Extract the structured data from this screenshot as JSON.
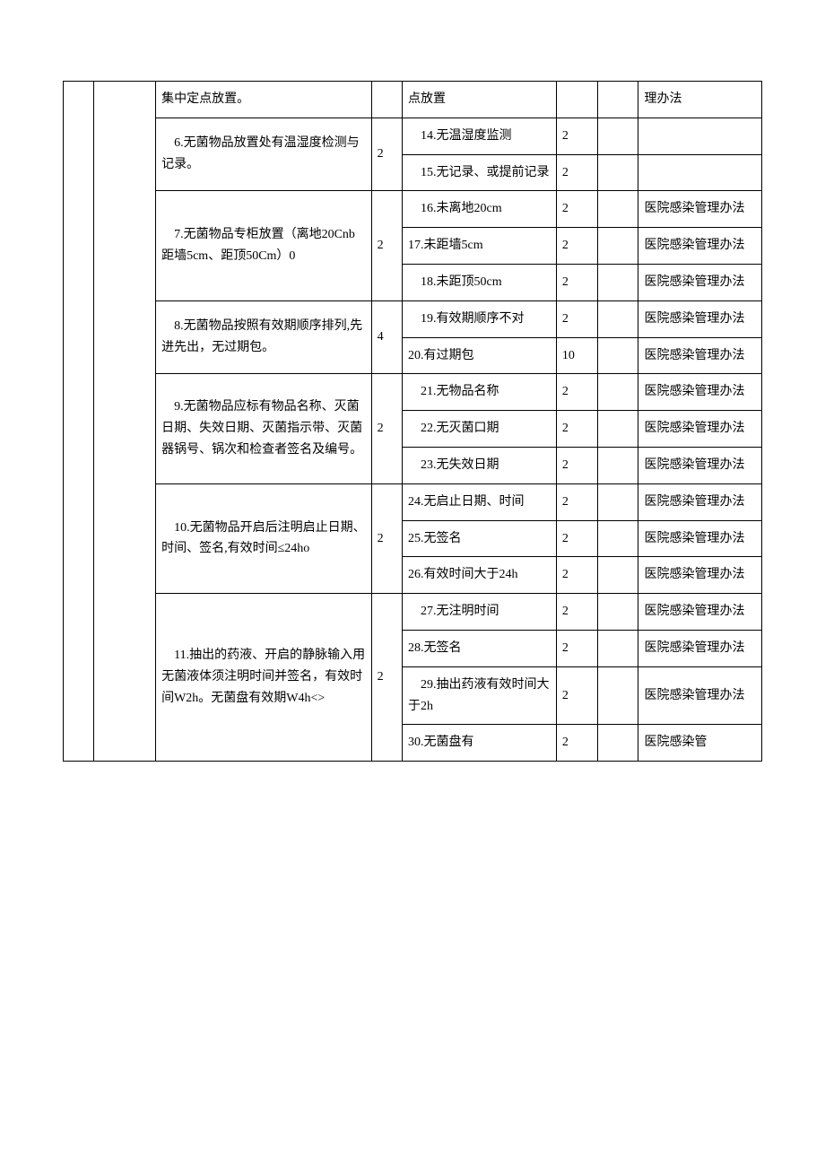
{
  "rows": [
    {
      "c": "集中定点放置。",
      "e": "点放置",
      "h": "理办法"
    },
    {
      "c": "　6.无菌物品放置处有温湿度检测与记录。",
      "d": "2",
      "sub": [
        {
          "e": "　14.无温湿度监测",
          "f": "2",
          "h": ""
        },
        {
          "e": "　15.无记录、或提前记录",
          "f": "2",
          "h": ""
        }
      ]
    },
    {
      "c": "　7.无菌物品专柜放置（离地20Cnb距墙5cm、距顶50Cm）0",
      "d": "2",
      "sub": [
        {
          "e": "　16.未离地20cm",
          "f": "2",
          "h": "医院感染管理办法"
        },
        {
          "e": "17.未距墙5cm",
          "f": "2",
          "h": "医院感染管理办法"
        },
        {
          "e": "　18.未距顶50cm",
          "f": "2",
          "h": "医院感染管理办法"
        }
      ]
    },
    {
      "c": "　8.无菌物品按照有效期顺序排列,先进先出，无过期包。",
      "d": "4",
      "sub": [
        {
          "e": "　19.有效期顺序不对",
          "f": "2",
          "h": "医院感染管理办法"
        },
        {
          "e": "20.有过期包",
          "f": "10",
          "h": "医院感染管理办法"
        }
      ]
    },
    {
      "c": "　9.无菌物品应标有物品名称、灭菌日期、失效日期、灭菌指示带、灭菌器锅号、锅次和检查者签名及编号。",
      "d": "2",
      "sub": [
        {
          "e": "　21.无物品名称",
          "f": "2",
          "h": "医院感染管理办法"
        },
        {
          "e": "　22.无灭菌口期",
          "f": "2",
          "h": "医院感染管理办法"
        },
        {
          "e": "　23.无失效日期",
          "f": "2",
          "h": "医院感染管理办法"
        }
      ]
    },
    {
      "c": "　10.无菌物品开启后注明启止日期、时间、签名,有效时间≤24ho",
      "d": "2",
      "sub": [
        {
          "e": "24.无启止日期、时间",
          "f": "2",
          "h": "医院感染管理办法"
        },
        {
          "e": "25.无签名",
          "f": "2",
          "h": "医院感染管理办法"
        },
        {
          "e": "26.有效时间大于24h",
          "f": "2",
          "h": "医院感染管理办法"
        }
      ]
    },
    {
      "c": "　11.抽出的药液、开启的静脉输入用无菌液体须注明时间并签名，有效时间W2h。无菌盘有效期W4h<>",
      "d": "2",
      "sub": [
        {
          "e": "　27.无注明时间",
          "f": "2",
          "h": "医院感染管理办法"
        },
        {
          "e": "28.无签名",
          "f": "2",
          "h": "医院感染管理办法"
        },
        {
          "e": "　29.抽出药液有效时间大于2h",
          "f": "2",
          "h": "医院感染管理办法"
        },
        {
          "e": "30.无菌盘有",
          "f": "2",
          "h": "医院感染管"
        }
      ]
    }
  ]
}
